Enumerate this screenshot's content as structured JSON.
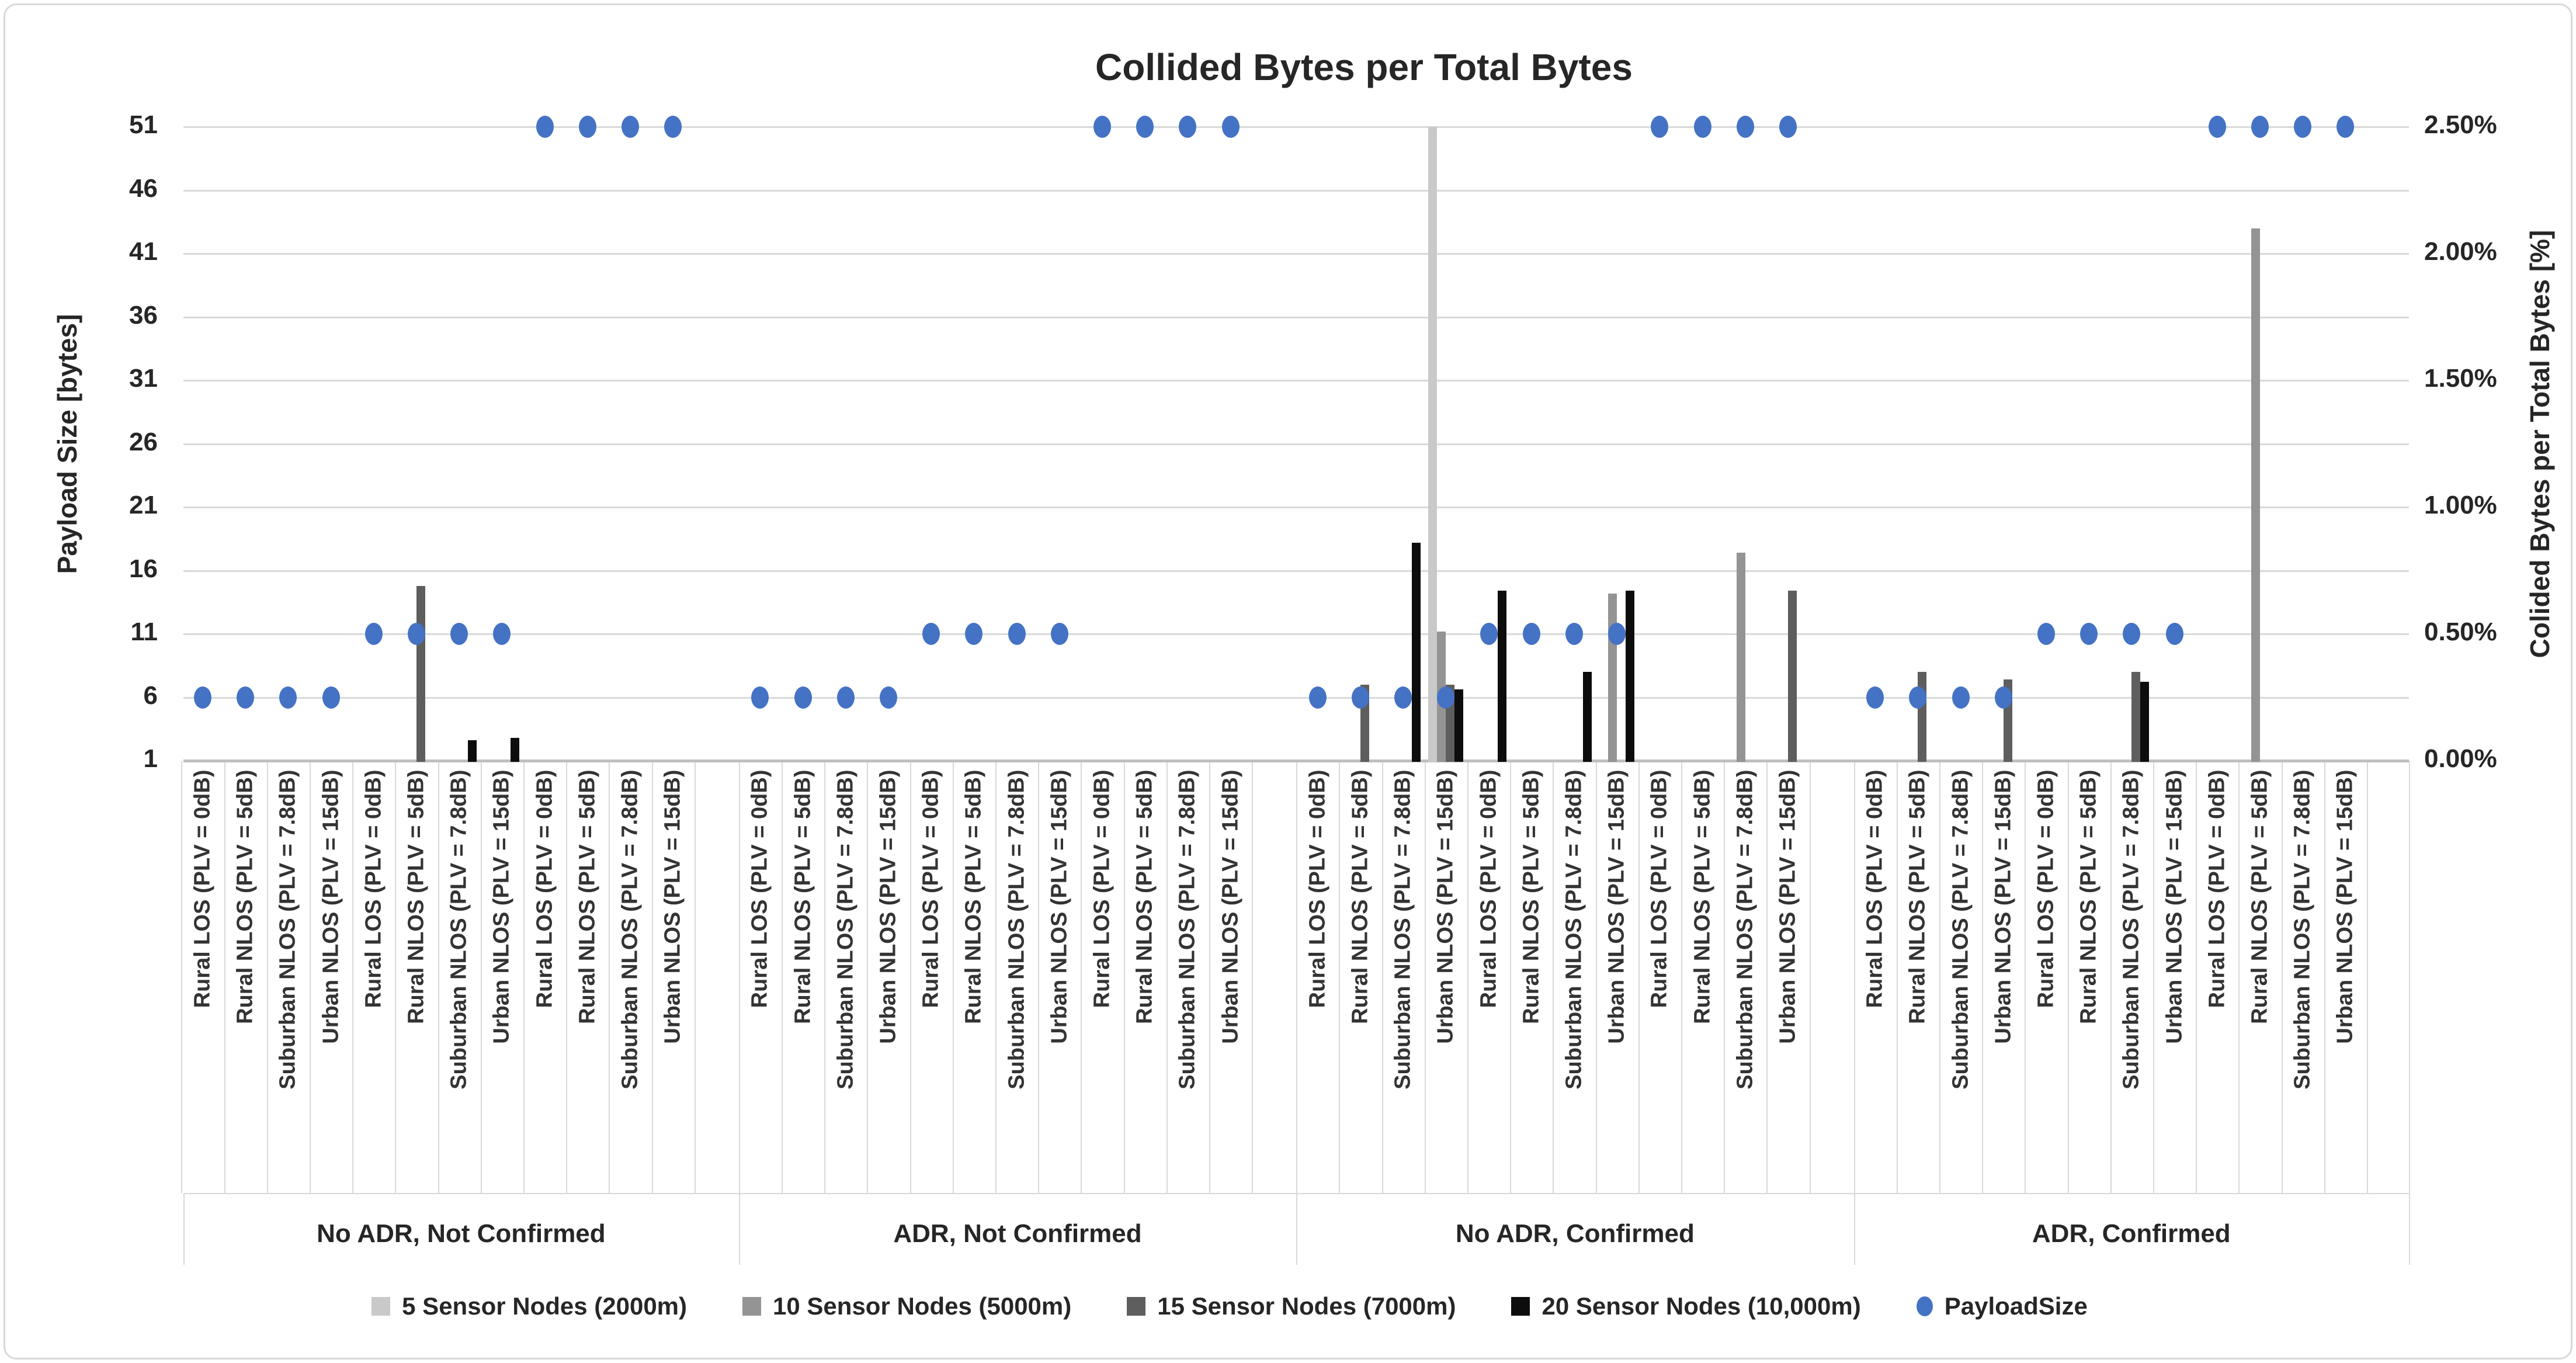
{
  "title": "Collided Bytes per Total Bytes",
  "left_axis": {
    "label": "Payload Size [bytes]",
    "ticks": [
      51,
      46,
      41,
      36,
      31,
      26,
      21,
      16,
      11,
      6,
      1
    ],
    "min": 1,
    "max": 51
  },
  "right_axis": {
    "label": "Colided Bytes per Total Bytes [%]",
    "ticks": [
      "2.50%",
      "2.00%",
      "1.50%",
      "1.00%",
      "0.50%",
      "0.00%"
    ],
    "min": 0,
    "max": 2.5
  },
  "chart_data": {
    "type": "bar",
    "title": "Collided Bytes per Total Bytes",
    "xlabel": "",
    "ylabel_left": "Payload Size [bytes]",
    "ylabel_right": "Colided Bytes per Total Bytes [%]",
    "ylim_left": [
      1,
      51
    ],
    "ylim_right_percent": [
      0.0,
      2.5
    ],
    "grid": "horizontal, every 0.25% (every 5 bytes)",
    "legend_position": "bottom",
    "notes": "Bar values are percent on the right axis. The 5-Sensor-Nodes bar at 'No ADR, Confirmed' / Urban NLOS (PLV = 15dB) / payload 6 reaches the 2.50% axis maximum (clipped at plot top).",
    "groups": [
      "No ADR, Not Confirmed",
      "ADR, Not Confirmed",
      "No ADR, Confirmed",
      "ADR, Confirmed"
    ],
    "environment_labels": [
      "Rural LOS (PLV = 0dB)",
      "Rural NLOS (PLV = 5dB)",
      "Suburban NLOS (PLV = 7.8dB)",
      "Urban NLOS (PLV = 15dB)"
    ],
    "payload_subgroups": [
      6,
      11,
      51
    ],
    "categories": [
      "Rural LOS (PLV = 0dB)",
      "Rural NLOS (PLV = 5dB)",
      "Suburban NLOS (PLV = 7.8dB)",
      "Urban NLOS (PLV = 15dB)",
      "Rural LOS (PLV = 0dB)",
      "Rural NLOS (PLV = 5dB)",
      "Suburban NLOS (PLV = 7.8dB)",
      "Urban NLOS (PLV = 15dB)",
      "Rural LOS (PLV = 0dB)",
      "Rural NLOS (PLV = 5dB)",
      "Suburban NLOS (PLV = 7.8dB)",
      "Urban NLOS (PLV = 15dB)",
      "Rural LOS (PLV = 0dB)",
      "Rural NLOS (PLV = 5dB)",
      "Suburban NLOS (PLV = 7.8dB)",
      "Urban NLOS (PLV = 15dB)",
      "Rural LOS (PLV = 0dB)",
      "Rural NLOS (PLV = 5dB)",
      "Suburban NLOS (PLV = 7.8dB)",
      "Urban NLOS (PLV = 15dB)",
      "Rural LOS (PLV = 0dB)",
      "Rural NLOS (PLV = 5dB)",
      "Suburban NLOS (PLV = 7.8dB)",
      "Urban NLOS (PLV = 15dB)",
      "Rural LOS (PLV = 0dB)",
      "Rural NLOS (PLV = 5dB)",
      "Suburban NLOS (PLV = 7.8dB)",
      "Urban NLOS (PLV = 15dB)",
      "Rural LOS (PLV = 0dB)",
      "Rural NLOS (PLV = 5dB)",
      "Suburban NLOS (PLV = 7.8dB)",
      "Urban NLOS (PLV = 15dB)",
      "Rural LOS (PLV = 0dB)",
      "Rural NLOS (PLV = 5dB)",
      "Suburban NLOS (PLV = 7.8dB)",
      "Urban NLOS (PLV = 15dB)",
      "Rural LOS (PLV = 0dB)",
      "Rural NLOS (PLV = 5dB)",
      "Suburban NLOS (PLV = 7.8dB)",
      "Urban NLOS (PLV = 15dB)",
      "Rural LOS (PLV = 0dB)",
      "Rural NLOS (PLV = 5dB)",
      "Suburban NLOS (PLV = 7.8dB)",
      "Urban NLOS (PLV = 15dB)",
      "Rural LOS (PLV = 0dB)",
      "Rural NLOS (PLV = 5dB)",
      "Suburban NLOS (PLV = 7.8dB)",
      "Urban NLOS (PLV = 15dB)"
    ],
    "series": [
      {
        "name": "5 Sensor Nodes (2000m)",
        "color": "#c9c9c9",
        "values": [
          0,
          0,
          0,
          0,
          0,
          0,
          0,
          0,
          0,
          0,
          0,
          0,
          0,
          0,
          0,
          0,
          0,
          0,
          0,
          0,
          0,
          0,
          0,
          0,
          0,
          0,
          0,
          2.5,
          0,
          0,
          0,
          0,
          0,
          0,
          0,
          0,
          0,
          0,
          0,
          0,
          0,
          0,
          0,
          0,
          0,
          0,
          0,
          0
        ]
      },
      {
        "name": "10 Sensor Nodes (5000m)",
        "color": "#949494",
        "values": [
          0,
          0,
          0,
          0,
          0,
          0,
          0,
          0,
          0,
          0,
          0,
          0,
          0,
          0,
          0,
          0,
          0,
          0,
          0,
          0,
          0,
          0,
          0,
          0,
          0,
          0,
          0,
          0.51,
          0,
          0,
          0,
          0.66,
          0,
          0,
          0.82,
          0,
          0,
          0,
          0,
          0,
          0,
          0,
          0,
          0,
          0,
          2.1,
          0,
          0
        ]
      },
      {
        "name": "15 Sensor Nodes (7000m)",
        "color": "#5e5e5e",
        "values": [
          0,
          0,
          0,
          0,
          0,
          0.69,
          0,
          0,
          0,
          0,
          0,
          0,
          0,
          0,
          0,
          0,
          0,
          0,
          0,
          0,
          0,
          0,
          0,
          0,
          0,
          0.3,
          0,
          0.3,
          0,
          0,
          0,
          0,
          0,
          0,
          0,
          0.67,
          0,
          0.35,
          0,
          0.32,
          0,
          0,
          0.35,
          0,
          0,
          0,
          0,
          0
        ]
      },
      {
        "name": "20 Sensor Nodes (10,000m)",
        "color": "#0d0d0d",
        "values": [
          0,
          0,
          0,
          0,
          0,
          0,
          0.08,
          0.09,
          0,
          0,
          0,
          0,
          0,
          0,
          0,
          0,
          0,
          0,
          0,
          0,
          0,
          0,
          0,
          0,
          0,
          0,
          0.86,
          0.28,
          0.67,
          0,
          0.35,
          0.67,
          0,
          0,
          0,
          0,
          0,
          0,
          0,
          0,
          0,
          0,
          0.31,
          0,
          0,
          0,
          0,
          0
        ]
      }
    ],
    "payload_series": {
      "name": "PayloadSize",
      "color": "#4472c4",
      "values": [
        6,
        6,
        6,
        6,
        11,
        11,
        11,
        11,
        51,
        51,
        51,
        51,
        6,
        6,
        6,
        6,
        11,
        11,
        11,
        11,
        51,
        51,
        51,
        51,
        6,
        6,
        6,
        6,
        11,
        11,
        11,
        11,
        51,
        51,
        51,
        51,
        6,
        6,
        6,
        6,
        11,
        11,
        11,
        11,
        51,
        51,
        51,
        51
      ]
    }
  },
  "colors": {
    "grid": "#d9d9d9",
    "axis_line": "#bfbfbf",
    "text": "#262626",
    "payload_dot": "#4472c4"
  }
}
